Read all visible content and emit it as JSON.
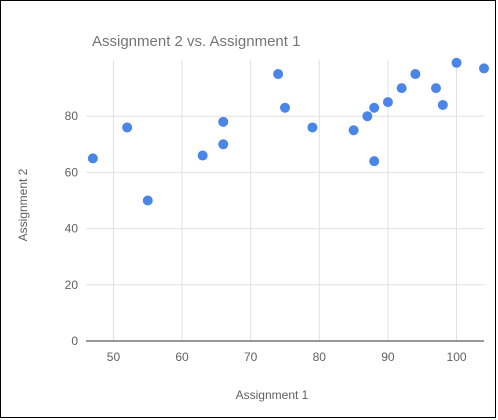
{
  "chart_data": {
    "type": "scatter",
    "title": "Assignment 2 vs. Assignment 1",
    "xlabel": "Assignment 1",
    "ylabel": "Assignment 2",
    "xlim": [
      46,
      104
    ],
    "ylim": [
      0,
      100
    ],
    "xticks": [
      50,
      60,
      70,
      80,
      90,
      100
    ],
    "yticks": [
      0,
      20,
      40,
      60,
      80
    ],
    "grid": true,
    "legend": "none",
    "point_color": "#4a86e8",
    "points": [
      {
        "x": 47,
        "y": 65
      },
      {
        "x": 52,
        "y": 76
      },
      {
        "x": 55,
        "y": 50
      },
      {
        "x": 63,
        "y": 66
      },
      {
        "x": 66,
        "y": 70
      },
      {
        "x": 66,
        "y": 78
      },
      {
        "x": 74,
        "y": 95
      },
      {
        "x": 75,
        "y": 83
      },
      {
        "x": 79,
        "y": 76
      },
      {
        "x": 85,
        "y": 75
      },
      {
        "x": 87,
        "y": 80
      },
      {
        "x": 88,
        "y": 83
      },
      {
        "x": 88,
        "y": 64
      },
      {
        "x": 90,
        "y": 85
      },
      {
        "x": 92,
        "y": 90
      },
      {
        "x": 94,
        "y": 95
      },
      {
        "x": 97,
        "y": 90
      },
      {
        "x": 98,
        "y": 84
      },
      {
        "x": 100,
        "y": 99
      },
      {
        "x": 104,
        "y": 97
      }
    ]
  }
}
